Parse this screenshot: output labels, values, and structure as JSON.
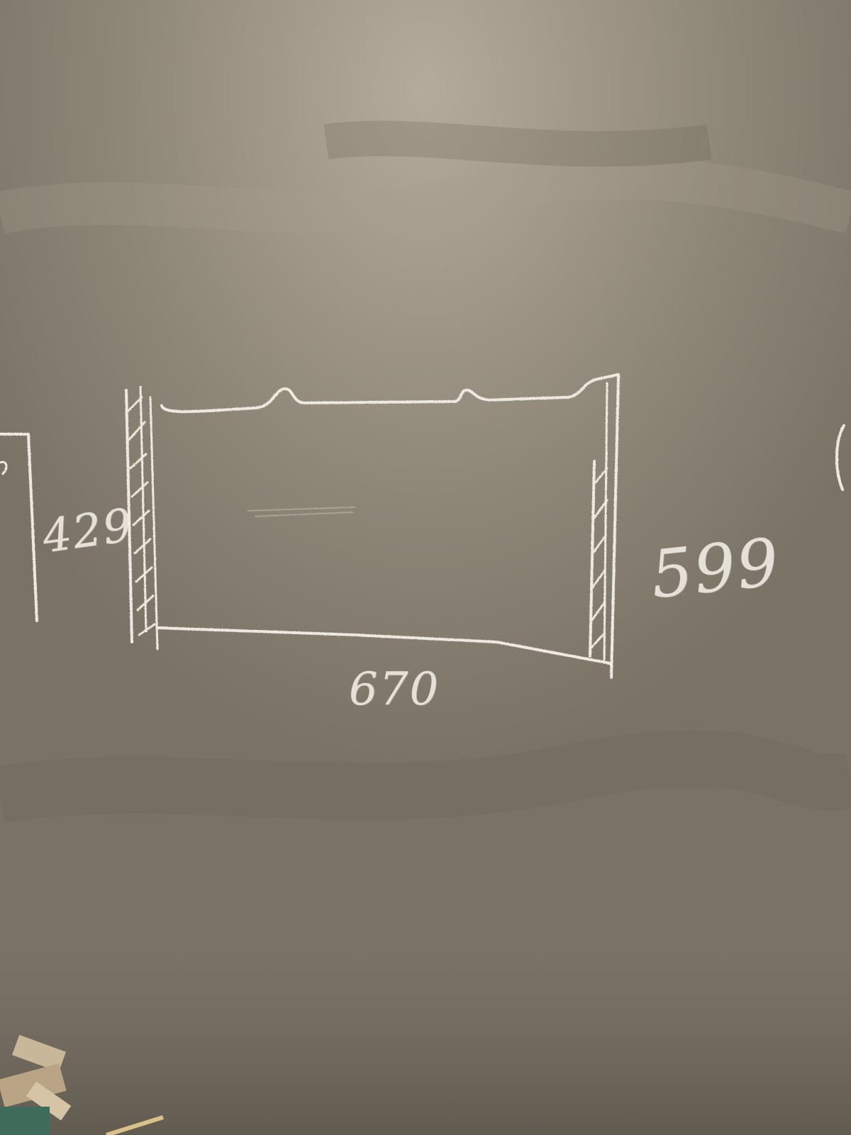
{
  "scene": {
    "description_surface": "plastered-wall",
    "chalk_color": "#eeeae2",
    "wall_color": "#7a7265"
  },
  "labels": {
    "bottom_dimension": "670",
    "right_dimension": "599",
    "left_dimension": "429"
  }
}
